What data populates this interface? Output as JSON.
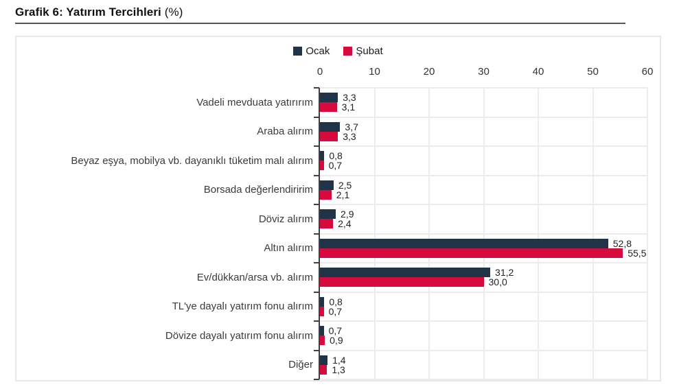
{
  "page": {
    "title_bold": "Grafik 6: Yatırım Tercihleri",
    "title_suffix": "(%)"
  },
  "colors": {
    "ocak": "#213447",
    "subat": "#d60a3c",
    "grid": "#ececec",
    "axis": "#3f3f3f",
    "box_border": "#e7e7e7",
    "title_rule": "#565656",
    "tick_text": "#333333",
    "category_text": "#3a3a3a",
    "value_text": "#222222"
  },
  "chart_data": {
    "type": "bar",
    "orientation": "horizontal",
    "title": "Grafik 6: Yatırım Tercihleri (%)",
    "categories": [
      "Vadeli mevduata yatırırım",
      "Araba alırım",
      "Beyaz eşya, mobilya vb. dayanıklı tüketim malı alırım",
      "Borsada değerlendiririm",
      "Döviz alırım",
      "Altın alırım",
      "Ev/dükkan/arsa vb. alırım",
      "TL'ye dayalı yatırım fonu alırım",
      "Dövize dayalı yatırım fonu alırım",
      "Diğer"
    ],
    "series": [
      {
        "name": "Ocak",
        "color": "#213447",
        "values": [
          3.3,
          3.7,
          0.8,
          2.5,
          2.9,
          52.8,
          31.2,
          0.8,
          0.7,
          1.4
        ]
      },
      {
        "name": "Şubat",
        "color": "#d60a3c",
        "values": [
          3.1,
          3.3,
          0.7,
          2.1,
          2.4,
          55.5,
          30.0,
          0.7,
          0.9,
          1.3
        ]
      }
    ],
    "value_labels": [
      [
        "3,3",
        "3,7",
        "0,8",
        "2,5",
        "2,9",
        "52,8",
        "31,2",
        "0,8",
        "0,7",
        "1,4"
      ],
      [
        "3,1",
        "3,3",
        "0,7",
        "2,1",
        "2,4",
        "55,5",
        "30,0",
        "0,7",
        "0,9",
        "1,3"
      ]
    ],
    "xlim": [
      0,
      60
    ],
    "xticks": [
      0,
      10,
      20,
      30,
      40,
      50,
      60
    ],
    "decimal_separator": ",",
    "grid": true,
    "legend_position": "top-center"
  }
}
